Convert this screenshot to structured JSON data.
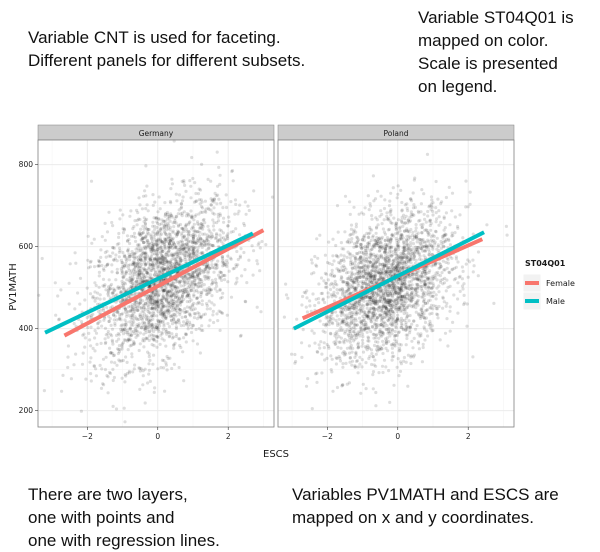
{
  "annotations": {
    "top_left": "Variable CNT is used for faceting.\nDifferent panels for different subsets.",
    "top_right": "Variable ST04Q01 is\nmapped on color.\nScale is presented\non legend.",
    "bottom_left": "There are two layers,\none with points and\none with regression lines.",
    "bottom_right": "Variables PV1MATH and ESCS are\nmapped on x and y coordinates."
  },
  "chart_data": {
    "type": "scatter",
    "xlabel": "ESCS",
    "ylabel": "PV1MATH",
    "xlim": [
      -3.4,
      3.3
    ],
    "ylim": [
      160,
      860
    ],
    "x_ticks": [
      -2,
      0,
      2
    ],
    "y_ticks": [
      200,
      400,
      600,
      800
    ],
    "grid": true,
    "facets": [
      {
        "label": "Germany",
        "points": {
          "description": "dense cloud of semi-transparent black points",
          "x_center": 0.1,
          "y_center": 520,
          "x_spread": 1.0,
          "y_spread": 90
        },
        "lines": [
          {
            "name": "Female",
            "x": [
              -2.65,
              3.0
            ],
            "y": [
              383,
              640
            ]
          },
          {
            "name": "Male",
            "x": [
              -3.2,
              2.7
            ],
            "y": [
              390,
              632
            ]
          }
        ]
      },
      {
        "label": "Poland",
        "points": {
          "description": "dense cloud of semi-transparent black points",
          "x_center": -0.3,
          "y_center": 505,
          "x_spread": 0.95,
          "y_spread": 85
        },
        "lines": [
          {
            "name": "Female",
            "x": [
              -2.7,
              2.4
            ],
            "y": [
              425,
              618
            ]
          },
          {
            "name": "Male",
            "x": [
              -2.95,
              2.45
            ],
            "y": [
              400,
              635
            ]
          }
        ]
      }
    ],
    "legend": {
      "title": "ST04Q01",
      "position": "right",
      "entries": [
        {
          "name": "Female",
          "color": "#F8766D"
        },
        {
          "name": "Male",
          "color": "#00BFC4"
        }
      ]
    }
  },
  "colors": {
    "panel_background": "#ffffff",
    "grid_major": "#ebebeb",
    "grid_minor": "#f5f5f5",
    "strip_background": "#cccccc",
    "points": "#000000",
    "female": "#F8766D",
    "male": "#00BFC4"
  }
}
